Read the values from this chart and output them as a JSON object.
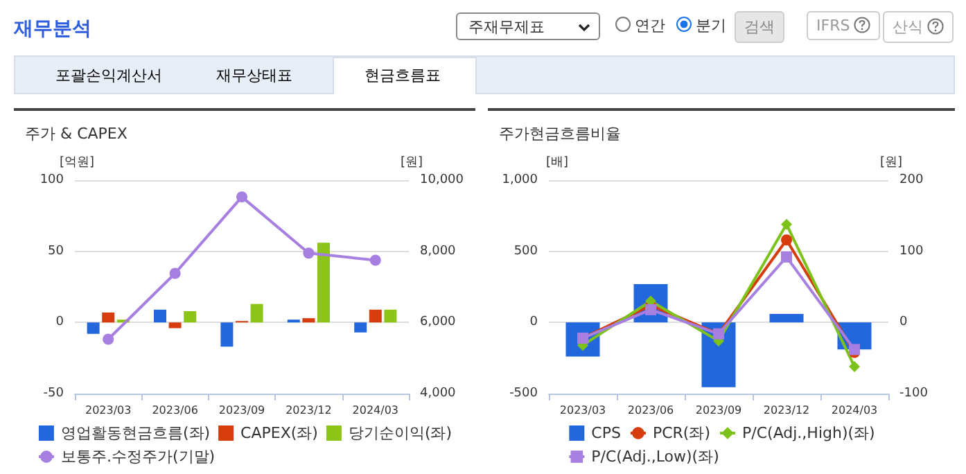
{
  "chart_data": [
    {
      "type": "bar",
      "title": "주가 & CAPEX",
      "ylabel": "[억원]",
      "y2label": "[원]",
      "annotations": [
        "재무분석",
        "주재무제표",
        "연간",
        "분기",
        "검색",
        "IFRS",
        "산식",
        "포괄손익계산서",
        "재무상태표",
        "현금흐름표"
      ],
      "categories": [
        "2023/03",
        "2023/06",
        "2023/09",
        "2023/12",
        "2024/03"
      ],
      "series": [
        {
          "name": "영업활동현금흐름(좌)",
          "color": "#2268dc",
          "values": [
            -8,
            9,
            -17,
            2,
            -7
          ]
        },
        {
          "name": "CAPEX(좌)",
          "color": "#d63c0c",
          "values": [
            7,
            -4,
            1,
            3,
            9
          ]
        },
        {
          "name": "당기순이익(좌)",
          "color": "#8cc417",
          "values": [
            2,
            8,
            13,
            56,
            9
          ]
        },
        {
          "name": "보통주.수정주가(기말)",
          "type": "line",
          "axis": "y2",
          "color": "#a67fe0",
          "marker": "circle",
          "values": [
            5530,
            7380,
            9530,
            7950,
            7750
          ]
        }
      ],
      "ylim": [
        -50,
        100
      ],
      "yticks": [
        -50,
        0,
        50,
        100
      ],
      "y2lim": [
        4000,
        10000
      ],
      "y2ticks": [
        {
          "value": 4000,
          "label": "4,000"
        },
        {
          "value": 6000,
          "label": "6,000"
        },
        {
          "value": 8000,
          "label": "8,000"
        },
        {
          "value": 10000,
          "label": "10,000"
        }
      ],
      "grid": "y",
      "legend": "bottom"
    },
    {
      "type": "line",
      "title": "주가현금흐름비율",
      "ylabel": "[배]",
      "y2label": "[원]",
      "categories": [
        "2023/03",
        "2023/06",
        "2023/09",
        "2023/12",
        "2024/03"
      ],
      "series": [
        {
          "name": "CPS",
          "type": "bar",
          "axis": "y2",
          "color": "#2268dc",
          "values": [
            -48,
            54,
            -91,
            12,
            -38
          ]
        },
        {
          "name": "PCR(좌)",
          "color": "#d63c0c",
          "marker": "circle",
          "values": [
            -110,
            120,
            -80,
            580,
            -210
          ]
        },
        {
          "name": "P/C(Adj.,High)(좌)",
          "color": "#7dc21b",
          "marker": "diamond",
          "values": [
            -160,
            150,
            -130,
            690,
            -310
          ]
        },
        {
          "name": "P/C(Adj.,Low)(좌)",
          "color": "#a67fe0",
          "marker": "square",
          "values": [
            -110,
            90,
            -80,
            460,
            -190
          ]
        }
      ],
      "ylim": [
        -500,
        1000
      ],
      "yticks": [
        -500,
        0,
        500,
        {
          "value": 1000,
          "label": "1,000"
        }
      ],
      "y2lim": [
        -100,
        200
      ],
      "y2ticks": [
        -100,
        0,
        100,
        200
      ],
      "grid": "y",
      "legend": "bottom"
    }
  ]
}
